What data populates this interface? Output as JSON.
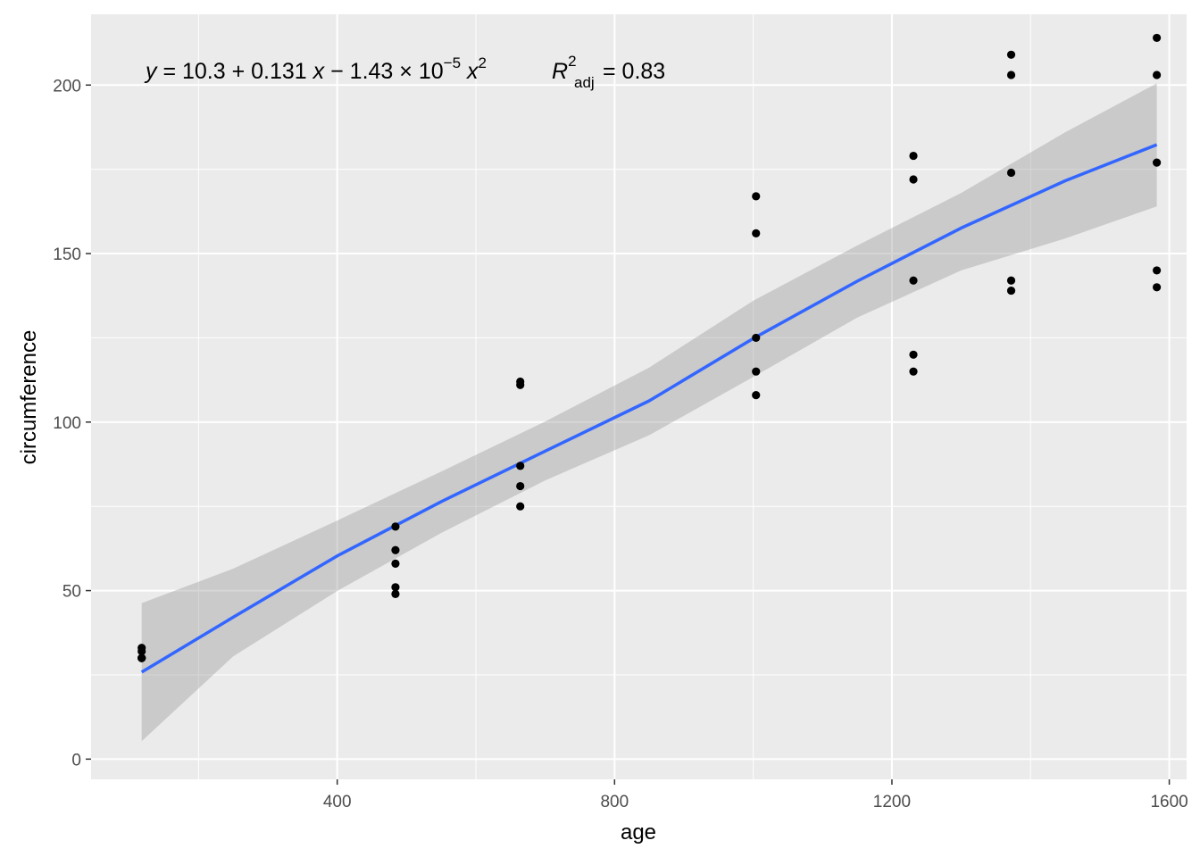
{
  "chart_data": {
    "type": "scatter",
    "title": "",
    "xlabel": "age",
    "ylabel": "circumference",
    "xlim": [
      45,
      1625
    ],
    "ylim": [
      -6,
      221
    ],
    "x_ticks": [
      400,
      800,
      1200,
      1600
    ],
    "x_tick_labels": [
      "400",
      "800",
      "1200",
      "1600"
    ],
    "y_ticks": [
      0,
      50,
      100,
      150,
      200
    ],
    "y_tick_labels": [
      "0",
      "50",
      "100",
      "150",
      "200"
    ],
    "grid": true,
    "legend": "none",
    "points": [
      {
        "x": 118,
        "y": 30
      },
      {
        "x": 118,
        "y": 33
      },
      {
        "x": 118,
        "y": 30
      },
      {
        "x": 118,
        "y": 32
      },
      {
        "x": 118,
        "y": 30
      },
      {
        "x": 484,
        "y": 58
      },
      {
        "x": 484,
        "y": 69
      },
      {
        "x": 484,
        "y": 51
      },
      {
        "x": 484,
        "y": 62
      },
      {
        "x": 484,
        "y": 49
      },
      {
        "x": 664,
        "y": 87
      },
      {
        "x": 664,
        "y": 111
      },
      {
        "x": 664,
        "y": 75
      },
      {
        "x": 664,
        "y": 112
      },
      {
        "x": 664,
        "y": 81
      },
      {
        "x": 1004,
        "y": 115
      },
      {
        "x": 1004,
        "y": 156
      },
      {
        "x": 1004,
        "y": 108
      },
      {
        "x": 1004,
        "y": 167
      },
      {
        "x": 1004,
        "y": 125
      },
      {
        "x": 1231,
        "y": 120
      },
      {
        "x": 1231,
        "y": 172
      },
      {
        "x": 1231,
        "y": 115
      },
      {
        "x": 1231,
        "y": 179
      },
      {
        "x": 1231,
        "y": 142
      },
      {
        "x": 1372,
        "y": 142
      },
      {
        "x": 1372,
        "y": 203
      },
      {
        "x": 1372,
        "y": 139
      },
      {
        "x": 1372,
        "y": 209
      },
      {
        "x": 1372,
        "y": 174
      },
      {
        "x": 1582,
        "y": 145
      },
      {
        "x": 1582,
        "y": 203
      },
      {
        "x": 1582,
        "y": 140
      },
      {
        "x": 1582,
        "y": 214
      },
      {
        "x": 1582,
        "y": 177
      }
    ],
    "fit": {
      "x": [
        118,
        250,
        400,
        550,
        700,
        850,
        1000,
        1150,
        1300,
        1450,
        1582
      ],
      "y": [
        25.8,
        42.1,
        60.3,
        76.4,
        91.4,
        106.3,
        124.8,
        141.8,
        157.6,
        171.6,
        182.3
      ],
      "lower": [
        5.3,
        30.5,
        49.9,
        67.1,
        82.7,
        96.1,
        113.4,
        131.0,
        145.0,
        154.5,
        164.0
      ],
      "upper": [
        46.3,
        56.5,
        70.8,
        85.3,
        100.2,
        116.2,
        136.0,
        152.4,
        168.0,
        186.0,
        200.5
      ]
    },
    "colors": {
      "panel": "#ebebeb",
      "grid": "#ffffff",
      "points": "#000000",
      "fit_line": "#3366ff",
      "ribbon": "#999999"
    },
    "annotation": {
      "y_var": "y",
      "eq_body": "= 10.3 + 0.131",
      "x_var": "x",
      "minus_coef": "− 1.43 × 10",
      "exp": "−5",
      "x2_var": "x",
      "x2_exp": "2",
      "r_var": "R",
      "r_sup": "2",
      "r_sub": "adj",
      "r_value": "= 0.83"
    }
  }
}
